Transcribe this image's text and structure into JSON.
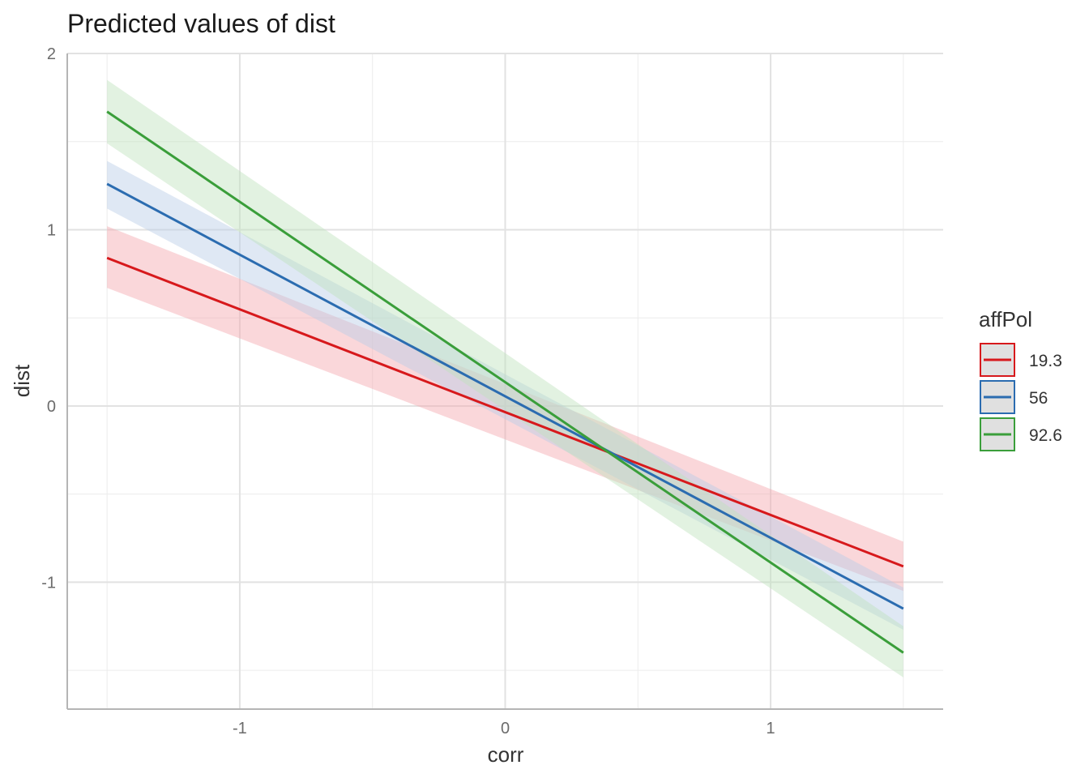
{
  "chart_data": {
    "type": "line",
    "title": "Predicted values of dist",
    "xlabel": "corr",
    "ylabel": "dist",
    "xlim": [
      -1.65,
      1.65
    ],
    "ylim": [
      -1.72,
      2.0
    ],
    "x_ticks": [
      -1,
      0,
      1
    ],
    "x_tick_labels": [
      "-1",
      "0",
      "1"
    ],
    "y_ticks": [
      -1,
      0,
      1,
      2
    ],
    "y_tick_labels": [
      "-1",
      "0",
      "1",
      "2"
    ],
    "x_minor": [
      -1.5,
      -0.5,
      0.5,
      1.5
    ],
    "y_minor": [
      -1.5,
      -0.5,
      0.5,
      1.5
    ],
    "grid": true,
    "legend": {
      "title": "affPol",
      "position": "right"
    },
    "series": [
      {
        "name": "19.3",
        "color": "#d7191c",
        "band_color": "#f4a6ae",
        "x": [
          -1.5,
          1.5
        ],
        "y": [
          0.84,
          -0.91
        ],
        "lower": [
          0.67,
          -1.05
        ],
        "upper": [
          1.02,
          -0.77
        ]
      },
      {
        "name": "56",
        "color": "#2b6cb0",
        "band_color": "#b9cbe6",
        "x": [
          -1.5,
          1.5
        ],
        "y": [
          1.26,
          -1.15
        ],
        "lower": [
          1.12,
          -1.27
        ],
        "upper": [
          1.39,
          -1.03
        ]
      },
      {
        "name": "92.6",
        "color": "#3a9e3a",
        "band_color": "#bfe3bd",
        "x": [
          -1.5,
          1.5
        ],
        "y": [
          1.67,
          -1.4
        ],
        "lower": [
          1.49,
          -1.54
        ],
        "upper": [
          1.85,
          -1.25
        ]
      }
    ]
  }
}
